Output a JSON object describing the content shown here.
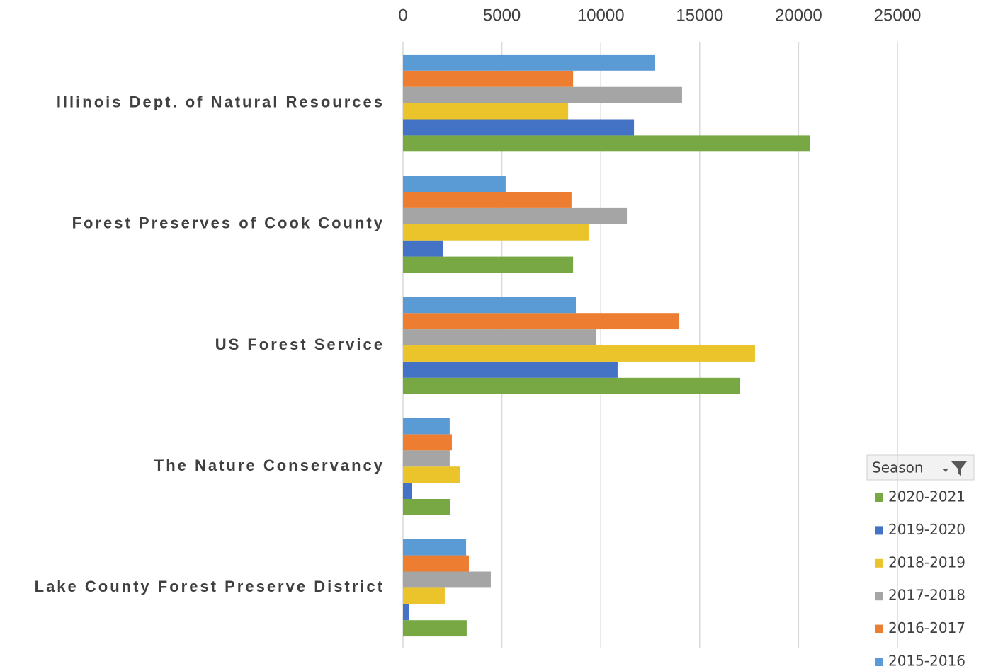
{
  "chart_data": {
    "type": "barh",
    "categories": [
      "Illinois Dept. of Natural Resources",
      "Forest Preserves of Cook County",
      "US Forest Service",
      "The Nature Conservancy",
      "Lake County Forest Preserve District"
    ],
    "legend_title": "Season",
    "series": [
      {
        "name": "2020-2021",
        "color": "#77a843",
        "values": [
          20560,
          8600,
          17050,
          2400,
          3220
        ]
      },
      {
        "name": "2019-2020",
        "color": "#4472c4",
        "values": [
          11680,
          2040,
          10850,
          430,
          320
        ]
      },
      {
        "name": "2018-2019",
        "color": "#eac42a",
        "values": [
          8350,
          9420,
          17800,
          2900,
          2110
        ]
      },
      {
        "name": "2017-2018",
        "color": "#a5a5a5",
        "values": [
          14110,
          11320,
          9780,
          2360,
          4440
        ]
      },
      {
        "name": "2016-2017",
        "color": "#ed7d31",
        "values": [
          8600,
          8520,
          13970,
          2470,
          3330
        ]
      },
      {
        "name": "2015-2016",
        "color": "#5b9bd5",
        "values": [
          12750,
          5190,
          8740,
          2360,
          3190
        ]
      }
    ],
    "xlim": [
      0,
      25000
    ],
    "xticks": [
      0,
      5000,
      10000,
      15000,
      20000,
      25000
    ],
    "grid": true,
    "legend": "bottom-right"
  }
}
